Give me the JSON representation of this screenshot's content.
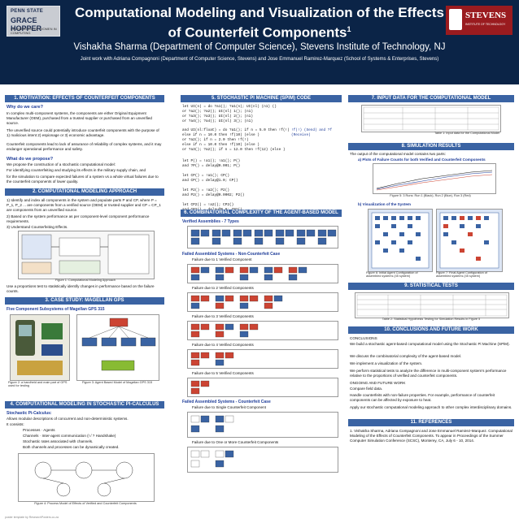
{
  "header": {
    "title": "Computational Modeling and Visualization of the Effects of Counterfeit Components",
    "title_sup": "1",
    "authors": "Vishakha Sharma (Department of Computer Science), Stevens Institute of Technology, NJ",
    "joint": "Joint work with Adriana Compagnoni (Department of Computer Science, Stevens) and Jose Emmanuel Ramirez-Marquez (School of Systems & Enterprises, Stevens)",
    "logo_left": {
      "line1": "PENN STATE",
      "line2": "GRACE HOPPER",
      "line3": "CELEBRATION OF WOMEN IN COMPUTING"
    },
    "logo_right": {
      "name": "STEVENS",
      "sub": "INSTITUTE OF TECHNOLOGY"
    }
  },
  "sections": {
    "s1": "1. MOTIVATION: EFFECTS OF COUNTERFEIT COMPONENTS",
    "s2": "2. COMPUTATIONAL MODELING APPROACH",
    "s3": "3. CASE STUDY: MAGELLAN GPS",
    "s4": "4. COMPUTATIONAL MODELING IN STOCHASTIC PI-CALCULUS",
    "s5": "5. STOCHASTIC PI MACHINE (SPIM) CODE",
    "s6": "6. COMBINATORIAL COMPLEXITY OF THE AGENT-BASED MODEL",
    "s7": "7. INPUT DATA FOR THE COMPUTATIONAL MODEL",
    "s8": "8. SIMULATION RESULTS",
    "s9": "9. STATISTICAL TESTS",
    "s10": "10. CONCLUSIONS AND FUTURE WORK",
    "s11": "11. REFERENCES"
  },
  "col1": {
    "why": "Why do we care?",
    "p1": "In complex multi-component systems, the components are either Original Equipment Manufacturer (OEM), purchased from a trusted supplier or purchased from an unverified source.",
    "p2": "The unverified source could potentially introduce counterfeit components with the purpose of 1) malicious intent 2) espionage or 3) economic advantage.",
    "p3": "Counterfeit components lead to lack of assurance of reliability of complex systems, and it may endanger operational performance and safety.",
    "what": "What do we propose?",
    "p4": "We propose the construction of a stochastic computational model:",
    "p5": "For identifying counterfeiting and studying its effects in the military supply chain, and",
    "p6": "for the simulation to compare expected failures of a system vs a whole virtual failures due to the counterfeit components of lower quality.",
    "a1": "1) Identify and index all components in the system and populate parts P and CP, where P = P_1, P_2 ... are components from a verified source (OEM) or trusted supplier and CP = CP_1 are components from an unverified source.",
    "a2": "2) Based on the system performance as per component-level component performance requirements.",
    "a3": "3) Understand Counterfeiting Effects.",
    "fig1": "Figure 1: Computational Modeling Approach",
    "a4": "Use a proportions test to statistically identify changes in performance based on the failure counts.",
    "five": "Five Component Subsystems of Magellan GPS 315",
    "fig2": "Figure 2: a handheld and main part of GPS used for testing",
    "fig3": "Figure 3: Agent Based Model of Magellan GPS 315",
    "spc": "Stochastic Pi-Calculus:",
    "q1": "Allows modular descriptions of concurrent and non-deterministic systems.",
    "q2": "It consists:",
    "q3": "Processes · Agents",
    "q4": "Channels · Inter-agent communication (! / ? Handshake)",
    "q5": "Stochastic rates associated with channels.",
    "q6": "Both channels and processes can be dynamically created.",
    "fig4": "Figure 4: Process Model of Effects of Verified and Counterfeit Components"
  },
  "col2": {
    "code1": [
      "let UI(n) = do ?a1(); ?a1(n); UI(nl) (n1) ()",
      "    or ?a2(); ?a2(); UI(nl) 1(); (n1)",
      "    or ?a3(); ?a3(); UI(nl) 2(); (n1)",
      "    or ?a4(); ?a4(); UI(nl) 3(); (n1)"
    ],
    "code2": [
      "and UI(nl:float) = do ?a1(); if n = 5.0 then !f(!)",
      "          else if n = 10.0 then !f(10) (else )",
      "          or ?a2(); if n = 2.0 then !f(!)",
      "          else if n = 10.0 then !f(10) (else )",
      "          or ?a3(); ?a2(); if n = 12.0 then !f(12) (else )"
    ],
    "code_note": "!f(!) (Send) and ?f (Receive)",
    "code3": [
      "let P() = !a1(); !a1(); P()",
      "and ?P() = delay@0.001; P()",
      "",
      "let CP() = !a1(); CP()",
      "and CP() = delay@1.0; CP()",
      "",
      "let P2() = !a2(); P2()",
      "and P2() = delay@0.0002; P2()",
      "",
      "let CP2() = !a2(); CP2()",
      "and CP2() = delay@0.8; CP2()"
    ],
    "verified": "Verified Assemblies - 7 Types",
    "failed1": "Failed Assembled Systems - Non-Counterfeit Case",
    "f1": "Failure due to 1 Verified Component",
    "f2": "Failure due to 2 Verified Components",
    "f3": "Failure due to 3 Verified Components",
    "f4": "Failure due to 4 Verified Components",
    "f5": "Failure due to 5 Verified Components",
    "failed2": "Failed Assembled Systems - Counterfeit Case",
    "f6": "Failure due to Single Counterfeit Component",
    "f7": "Failure due to One or More Counterfeit Components"
  },
  "col3": {
    "table1": "Table 1: Input data for the Computational Model",
    "r1": "The output of the computational model contains two parts:",
    "r2": "a) Plots of Failure Counts for both Verified and Counterfeit Components",
    "fig5": "Figure 5: 3 Runs: Run 1 (Black), Run 2 (Blue), Run 3 (Red)",
    "r3": "b) Visualization of the System",
    "fig6": "Figure 6: Initial Agent Configuration of assembled systems (45 system)",
    "fig7": "Figure 7: Final Agent Configuration of assembled systems (45 system)",
    "table2": "Table 2: Statistical Hypothesis Testing for Simulation Results in Figure 5",
    "conc": "CONCLUSIONS",
    "c1": "We build a stochastic agent-based computational model using the Stochastic Pi Machine (SPiM).",
    "c2": "We discuss the combinatorial complexity of the agent-based model.",
    "c3": "We implement a visualization of the system.",
    "c4": "We perform statistical tests to analyze the difference in multi-component system's performance relative to the proportions of verified and counterfeit components.",
    "ongoing": "ONGOING AND FUTURE WORK",
    "c5": "Compare field data.",
    "c6": "Handle counterfeits with non-failure properties. For example, performance of counterfeit components can be affected by exposure to heat.",
    "c7": "Apply our stochastic computational modeling approach to other complex interdisciplinary domains.",
    "ref": "1. Vishakha Sharma, Adriana Compagnoni and Jose Emmanuel Ramirez-Marquez. Computational Modeling of the Effects of Counterfeit Components. To appear in Proceedings of the Summer Computer Simulation Conference (SCSC), Monterey, CA, July 6 - 10, 2014."
  },
  "footer": "poster template by ResearchPosters.co.za"
}
